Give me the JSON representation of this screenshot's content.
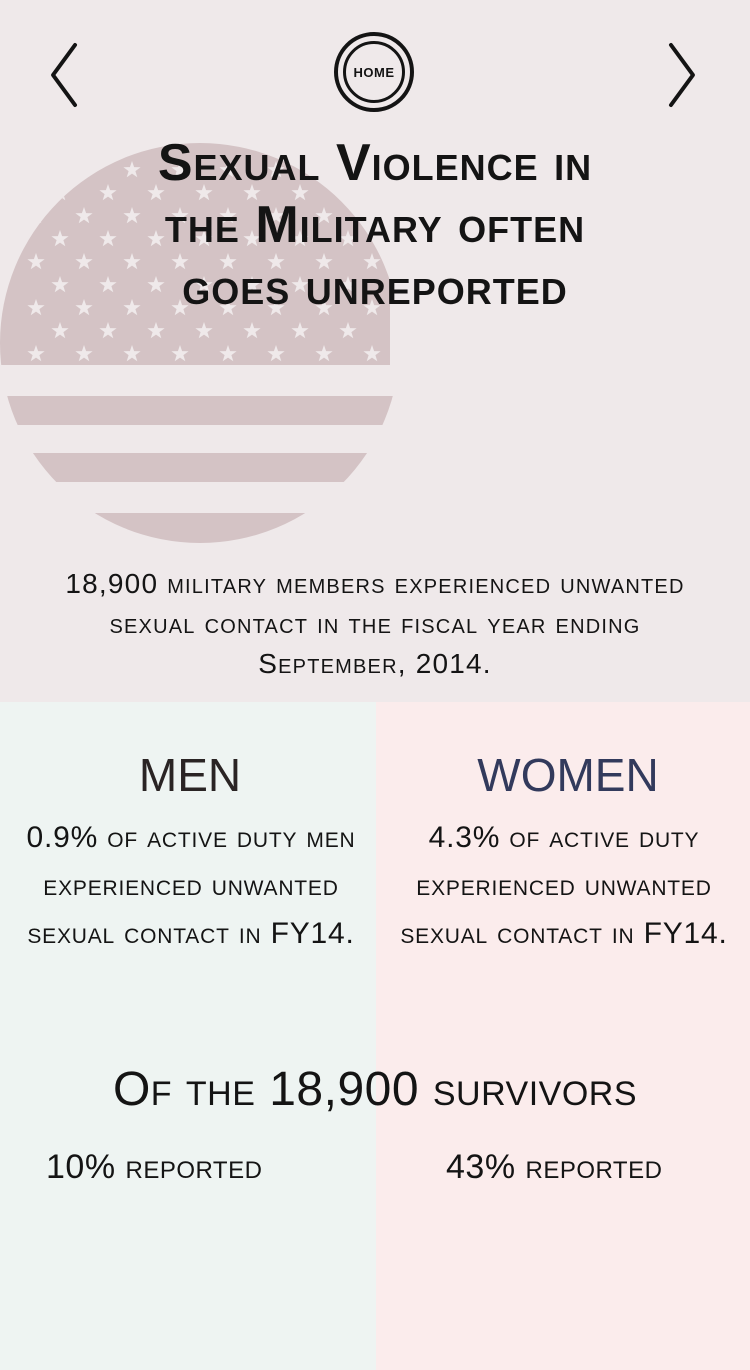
{
  "nav": {
    "home_label": "HOME"
  },
  "header": {
    "title_line1": "Sexual Violence in",
    "title_line2": "the Military often",
    "title_line3": "goes unreported"
  },
  "intro": {
    "line1": "18,900 military members experienced unwanted",
    "line2": "sexual contact in the fiscal year ending",
    "line3": "September, 2014."
  },
  "men": {
    "heading": "MEN",
    "stat_line1": "0.9% of active duty men",
    "stat_line2": "experienced unwanted",
    "stat_line3": "sexual contact in FY14.",
    "reported": "10% reported"
  },
  "women": {
    "heading": "WOMEN",
    "stat_line1": "4.3% of active duty",
    "stat_line2": "experienced unwanted",
    "stat_line3": "sexual contact in FY14.",
    "reported": "43% reported"
  },
  "survivors": {
    "heading": "Of the 18,900 survivors"
  },
  "colors": {
    "top_background": "#efe9ea",
    "flag_tint": "#d4c3c5",
    "men_background": "#eef4f2",
    "women_background": "#fbecec",
    "women_heading": "#323a5c",
    "text": "#141414"
  },
  "icons": {
    "back": "chevron-left-icon",
    "forward": "chevron-right-icon",
    "flag": "american-flag-circle-icon"
  }
}
